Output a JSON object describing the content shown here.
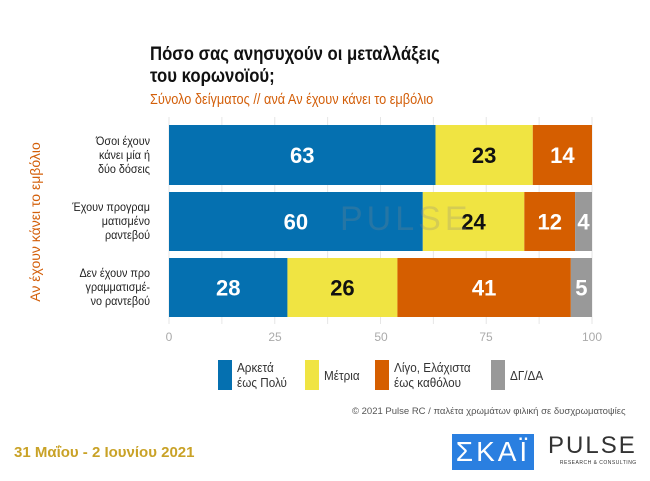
{
  "chart_data": {
    "type": "bar",
    "orientation": "horizontal",
    "stacked": true,
    "title": "Πόσο σας ανησυχούν οι μεταλλάξεις του κορωνοϊού;",
    "subtitle": "Σύνολο δείγματος // ανά Αν έχουν κάνει το εμβόλιο",
    "ylabel": "Αν έχουν κάνει το εμβόλιο",
    "categories": [
      "Όσοι έχουν κάνει μία ή δύο δόσεις",
      "Έχουν προγραμ ματισμένο ραντεβού",
      "Δεν έχουν προ γραμματισμέ- νο ραντεβού"
    ],
    "series": [
      {
        "name": "Αρκετά έως Πολύ",
        "color": "#0570b0",
        "values": [
          63,
          60,
          28
        ]
      },
      {
        "name": "Μέτρια",
        "color": "#f0e442",
        "values": [
          23,
          24,
          26
        ]
      },
      {
        "name": "Λίγο, Ελάχιστα έως καθόλου",
        "color": "#d55e00",
        "values": [
          14,
          12,
          41
        ]
      },
      {
        "name": "ΔΓ/ΔΑ",
        "color": "#999999",
        "values": [
          0,
          4,
          5
        ]
      }
    ],
    "xlim": [
      0,
      100
    ],
    "xticks": [
      "0",
      "25",
      "50",
      "75",
      "100"
    ],
    "grid": true,
    "legend": "bottom"
  },
  "cat_lines": [
    [
      "Όσοι έχουν",
      "κάνει μία ή",
      "δύο δόσεις"
    ],
    [
      "Έχουν προγραμ",
      "ματισμένο",
      "ραντεβού"
    ],
    [
      "Δεν έχουν προ",
      "γραμματισμέ-",
      "νο ραντεβού"
    ]
  ],
  "title_line1": "Πόσο σας ανησυχούν οι μεταλλάξεις",
  "title_line2": "του κορωνοϊού;",
  "legend_labels": [
    "Αρκετά\nέως Πολύ",
    "Μέτρια",
    "Λίγο, Ελάχιστα\nέως καθόλου",
    "ΔΓ/ΔΑ"
  ],
  "copyright": "© 2021 Pulse RC  /  παλέτα χρωμάτων φιλική σε δυσχρωματοψίες",
  "date": "31 Μαΐου - 2 Ιουνίου 2021",
  "logos": {
    "skai": "ΣΚΑΪ",
    "pulse": "PULSE",
    "pulse_tag": "RESEARCH & CONSULTING",
    "watermark": "PULSE"
  }
}
